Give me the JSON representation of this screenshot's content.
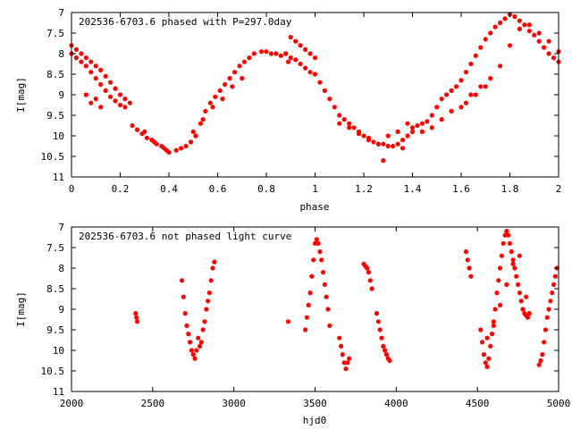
{
  "chart_data": [
    {
      "type": "scatter",
      "title": "202536-6703.6 phased with P=297.0day",
      "xlabel": "phase",
      "ylabel": "I[mag]",
      "xlim": [
        0,
        2
      ],
      "ylim": [
        11,
        7
      ],
      "y_inverted": true,
      "xticks": [
        0,
        0.2,
        0.4,
        0.6,
        0.8,
        1,
        1.2,
        1.4,
        1.6,
        1.8,
        2
      ],
      "xtick_labels": [
        "0",
        "0.2",
        "0.4",
        "0.6",
        "0.8",
        "1",
        "1.2",
        "1.4",
        "1.6",
        "1.8",
        "2"
      ],
      "yticks": [
        7,
        7.5,
        8,
        8.5,
        9,
        9.5,
        10,
        10.5,
        11
      ],
      "ytick_labels": [
        "7",
        "7.5",
        "8",
        "8.5",
        "9",
        "9.5",
        "10",
        "10.5",
        "11"
      ],
      "grid": false,
      "marker_color": "#ff0000",
      "series": [
        {
          "x": [
            0.0,
            0.02,
            0.04,
            0.06,
            0.08,
            0.1,
            0.12,
            0.14,
            0.16,
            0.18,
            0.2,
            0.22,
            0.24,
            0.0,
            0.02,
            0.04,
            0.06,
            0.08,
            0.1,
            0.12,
            0.14,
            0.16,
            0.18,
            0.2,
            0.22,
            0.06,
            0.08,
            0.1,
            0.12,
            0.25,
            0.27,
            0.29,
            0.31,
            0.33,
            0.35,
            0.37,
            0.39,
            0.4,
            0.3,
            0.34,
            0.38,
            0.43,
            0.45,
            0.47,
            0.49,
            0.51,
            0.53,
            0.55,
            0.57,
            0.59,
            0.61,
            0.63,
            0.65,
            0.67,
            0.69,
            0.71,
            0.73,
            0.75,
            0.5,
            0.54,
            0.58,
            0.62,
            0.66,
            0.7,
            0.78,
            0.8,
            0.82,
            0.84,
            0.86,
            0.88,
            0.9,
            0.92,
            0.94,
            0.96,
            0.98,
            1.0,
            0.88,
            0.89,
            0.9,
            0.92,
            0.94,
            0.96,
            0.98,
            1.0,
            1.02,
            1.04,
            1.06,
            1.08,
            1.1,
            1.12,
            1.14,
            1.16,
            1.18,
            1.2,
            1.22,
            1.24,
            1.26,
            1.28,
            1.3,
            1.32,
            1.34,
            1.36,
            1.38,
            1.4,
            1.1,
            1.14,
            1.18,
            1.22,
            1.26,
            1.3,
            1.34,
            1.38,
            1.28,
            1.36,
            1.4,
            1.42,
            1.44,
            1.46,
            1.48,
            1.5,
            1.52,
            1.54,
            1.56,
            1.58,
            1.6,
            1.62,
            1.64,
            1.66,
            1.68,
            1.7,
            1.72,
            1.74,
            1.76,
            1.78,
            1.8,
            1.82,
            1.84,
            1.86,
            1.88,
            1.9,
            1.92,
            1.94,
            1.96,
            1.98,
            2.0,
            1.6,
            1.64,
            1.68,
            1.72,
            1.76,
            1.8,
            1.84,
            1.88,
            1.92,
            1.96,
            2.0,
            1.44,
            1.48,
            1.52,
            1.56,
            1.62,
            1.66,
            1.7
          ],
          "y": [
            7.8,
            7.9,
            8.0,
            8.1,
            8.2,
            8.3,
            8.4,
            8.55,
            8.7,
            8.85,
            9.0,
            9.1,
            9.2,
            8.0,
            8.1,
            8.2,
            8.3,
            8.45,
            8.6,
            8.75,
            8.9,
            9.05,
            9.15,
            9.25,
            9.3,
            9.0,
            9.2,
            9.1,
            9.3,
            9.75,
            9.85,
            9.95,
            10.05,
            10.1,
            10.2,
            10.25,
            10.35,
            10.4,
            9.9,
            10.15,
            10.3,
            10.35,
            10.3,
            10.25,
            10.15,
            10.0,
            9.7,
            9.4,
            9.2,
            9.05,
            8.9,
            8.75,
            8.6,
            8.45,
            8.3,
            8.2,
            8.1,
            8.0,
            9.9,
            9.6,
            9.3,
            9.1,
            8.8,
            8.6,
            7.95,
            7.95,
            8.0,
            8.0,
            8.05,
            8.0,
            7.6,
            7.7,
            7.8,
            7.9,
            8.0,
            8.1,
            8.0,
            8.2,
            8.1,
            8.15,
            8.25,
            8.35,
            8.45,
            8.5,
            8.7,
            8.9,
            9.1,
            9.3,
            9.5,
            9.6,
            9.7,
            9.8,
            9.9,
            10.0,
            10.1,
            10.15,
            10.2,
            10.2,
            10.25,
            10.25,
            10.2,
            10.1,
            10.0,
            9.9,
            9.7,
            9.8,
            9.95,
            10.05,
            10.2,
            10.0,
            9.9,
            9.7,
            10.6,
            10.3,
            9.8,
            9.75,
            9.7,
            9.65,
            9.5,
            9.3,
            9.1,
            9.0,
            8.9,
            8.8,
            8.65,
            8.45,
            8.25,
            8.05,
            7.85,
            7.65,
            7.5,
            7.35,
            7.25,
            7.15,
            7.05,
            7.1,
            7.2,
            7.3,
            7.45,
            7.55,
            7.7,
            7.85,
            8.0,
            8.1,
            8.2,
            9.3,
            9.0,
            8.8,
            8.6,
            8.3,
            7.8,
            7.4,
            7.3,
            7.5,
            7.7,
            7.95,
            9.9,
            9.8,
            9.6,
            9.4,
            9.2,
            9.0,
            8.8
          ]
        }
      ]
    },
    {
      "type": "scatter",
      "title": "202536-6703.6 not phased light curve",
      "xlabel": "hjd0",
      "ylabel": "I[mag]",
      "xlim": [
        2000,
        5000
      ],
      "ylim": [
        11,
        7
      ],
      "y_inverted": true,
      "xticks": [
        2000,
        2500,
        3000,
        3500,
        4000,
        4500,
        5000
      ],
      "xtick_labels": [
        "2000",
        "2500",
        "3000",
        "3500",
        "4000",
        "4500",
        "5000"
      ],
      "yticks": [
        7,
        7.5,
        8,
        8.5,
        9,
        9.5,
        10,
        10.5,
        11
      ],
      "ytick_labels": [
        "7",
        "7.5",
        "8",
        "8.5",
        "9",
        "9.5",
        "10",
        "10.5",
        "11"
      ],
      "grid": false,
      "marker_color": "#ff0000",
      "series": [
        {
          "x": [
            2395,
            2400,
            2405,
            2680,
            2690,
            2700,
            2710,
            2720,
            2730,
            2740,
            2750,
            2760,
            2770,
            2780,
            2790,
            2800,
            2810,
            2820,
            2830,
            2840,
            2850,
            2860,
            2870,
            2880,
            3335,
            3440,
            3450,
            3460,
            3470,
            3480,
            3490,
            3500,
            3510,
            3520,
            3530,
            3540,
            3550,
            3560,
            3570,
            3580,
            3590,
            3650,
            3660,
            3670,
            3680,
            3690,
            3700,
            3710,
            3800,
            3810,
            3820,
            3830,
            3840,
            3850,
            3880,
            3890,
            3900,
            3910,
            3920,
            3930,
            3940,
            3950,
            3960,
            4430,
            4440,
            4450,
            4460,
            4520,
            4530,
            4540,
            4550,
            4560,
            4570,
            4580,
            4590,
            4600,
            4610,
            4620,
            4630,
            4640,
            4650,
            4660,
            4670,
            4680,
            4690,
            4700,
            4710,
            4720,
            4730,
            4740,
            4750,
            4760,
            4770,
            4780,
            4790,
            4800,
            4810,
            4820,
            4880,
            4890,
            4900,
            4910,
            4920,
            4930,
            4940,
            4950,
            4960,
            4970,
            4980,
            4990,
            4560,
            4600,
            4640,
            4680,
            4720,
            4760,
            4800
          ],
          "y": [
            9.1,
            9.2,
            9.3,
            8.3,
            8.7,
            9.1,
            9.4,
            9.6,
            9.8,
            10.0,
            10.1,
            10.2,
            10.0,
            9.7,
            9.9,
            9.8,
            9.5,
            9.3,
            9.0,
            8.8,
            8.6,
            8.3,
            8.0,
            7.85,
            9.3,
            9.5,
            9.2,
            8.9,
            8.6,
            8.2,
            7.8,
            7.4,
            7.3,
            7.4,
            7.6,
            7.8,
            8.1,
            8.4,
            8.7,
            9.0,
            9.4,
            9.7,
            9.9,
            10.1,
            10.3,
            10.45,
            10.3,
            10.2,
            7.9,
            7.95,
            8.0,
            8.1,
            8.3,
            8.5,
            9.1,
            9.3,
            9.5,
            9.7,
            9.9,
            10.0,
            10.1,
            10.2,
            10.25,
            7.6,
            7.8,
            8.0,
            8.2,
            9.5,
            9.8,
            10.1,
            10.3,
            10.4,
            10.2,
            9.9,
            9.6,
            9.3,
            9.0,
            8.6,
            8.3,
            8.0,
            7.7,
            7.4,
            7.2,
            7.1,
            7.2,
            7.4,
            7.6,
            7.8,
            8.0,
            8.2,
            8.4,
            8.6,
            8.8,
            9.0,
            9.1,
            9.15,
            9.2,
            9.1,
            10.35,
            10.25,
            10.1,
            9.8,
            9.5,
            9.2,
            9.0,
            8.8,
            8.6,
            8.4,
            8.2,
            8.0,
            9.7,
            9.4,
            8.9,
            8.4,
            7.9,
            7.7,
            8.7
          ]
        }
      ]
    }
  ]
}
